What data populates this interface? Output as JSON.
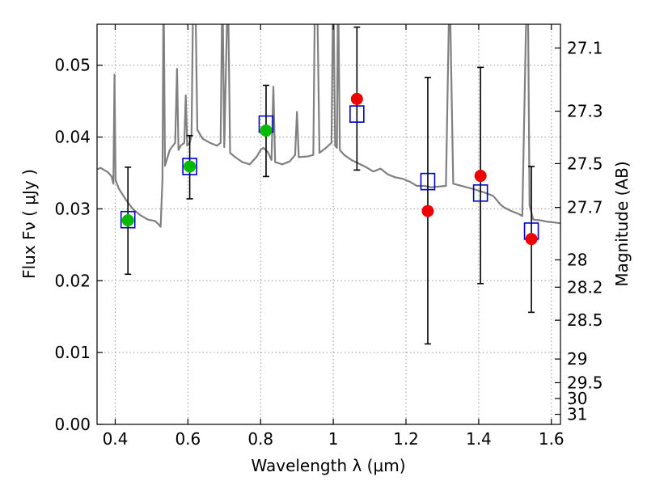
{
  "chart_data": {
    "type": "scatter",
    "title": "",
    "xlabel": "Wavelength  λ (μm)",
    "ylabel": "Flux  Fν  ( μJy )",
    "ylabel_right": "Magnitude (AB)",
    "xlim": [
      0.35,
      1.625
    ],
    "ylim": [
      0.0,
      0.0557
    ],
    "x_ticks": [
      0.4,
      0.6,
      0.8,
      1.0,
      1.2,
      1.4,
      1.6
    ],
    "x_tick_labels": [
      "0.4",
      "0.6",
      "0.8",
      "1",
      "1.2",
      "1.4",
      "1.6"
    ],
    "y_ticks": [
      0.0,
      0.01,
      0.02,
      0.03,
      0.04,
      0.05
    ],
    "y_tick_labels": [
      "0.00",
      "0.01",
      "0.02",
      "0.03",
      "0.04",
      "0.05"
    ],
    "right_ticks": [
      {
        "label": "27.1",
        "flux": 0.0524
      },
      {
        "label": "27.3",
        "flux": 0.0436
      },
      {
        "label": "27.5",
        "flux": 0.0363
      },
      {
        "label": "27.7",
        "flux": 0.0302
      },
      {
        "label": "28",
        "flux": 0.0229
      },
      {
        "label": "28.2",
        "flux": 0.0191
      },
      {
        "label": "28.5",
        "flux": 0.0145
      },
      {
        "label": "29",
        "flux": 0.0091
      },
      {
        "label": "29.5",
        "flux": 0.0058
      },
      {
        "label": "30",
        "flux": 0.0036
      },
      {
        "label": "31",
        "flux": 0.0014
      }
    ],
    "grid": true,
    "series": [
      {
        "marker": "open-square",
        "color": "#0000cc",
        "x": [
          0.435,
          0.605,
          0.815,
          1.065,
          1.26,
          1.405,
          1.545
        ],
        "y": [
          0.0285,
          0.0359,
          0.0418,
          0.0432,
          0.0338,
          0.0322,
          0.0269
        ]
      },
      {
        "marker": "filled-circle",
        "color": "#00bb00",
        "x": [
          0.435,
          0.605,
          0.815
        ],
        "y": [
          0.0284,
          0.0359,
          0.0409
        ]
      },
      {
        "marker": "filled-circle",
        "color": "#ee0000",
        "x": [
          1.065,
          1.26,
          1.405,
          1.545
        ],
        "y": [
          0.0453,
          0.0297,
          0.0346,
          0.0258
        ]
      }
    ],
    "error_bars": [
      {
        "x": 0.435,
        "low": 0.0209,
        "high": 0.0358
      },
      {
        "x": 0.605,
        "low": 0.0314,
        "high": 0.0402
      },
      {
        "x": 0.815,
        "low": 0.0345,
        "high": 0.0472
      },
      {
        "x": 1.065,
        "low": 0.0354,
        "high": 0.0553
      },
      {
        "x": 1.26,
        "low": 0.0112,
        "high": 0.0483
      },
      {
        "x": 1.405,
        "low": 0.0196,
        "high": 0.0497
      },
      {
        "x": 1.545,
        "low": 0.0156,
        "high": 0.0359
      }
    ],
    "model_spectrum": {
      "color": "#808080",
      "points": [
        [
          0.35,
          0.0355
        ],
        [
          0.36,
          0.0357
        ],
        [
          0.37,
          0.0354
        ],
        [
          0.38,
          0.0351
        ],
        [
          0.39,
          0.0345
        ],
        [
          0.395,
          0.0335
        ],
        [
          0.398,
          0.0487
        ],
        [
          0.401,
          0.034
        ],
        [
          0.41,
          0.0328
        ],
        [
          0.43,
          0.0312
        ],
        [
          0.45,
          0.0299
        ],
        [
          0.47,
          0.0291
        ],
        [
          0.49,
          0.0285
        ],
        [
          0.51,
          0.0283
        ],
        [
          0.52,
          0.0278
        ],
        [
          0.525,
          0.0275
        ],
        [
          0.53,
          0.0342
        ],
        [
          0.533,
          0.062
        ],
        [
          0.537,
          0.036
        ],
        [
          0.55,
          0.0382
        ],
        [
          0.565,
          0.0392
        ],
        [
          0.57,
          0.0495
        ],
        [
          0.574,
          0.0382
        ],
        [
          0.58,
          0.0388
        ],
        [
          0.59,
          0.0392
        ],
        [
          0.594,
          0.0458
        ],
        [
          0.598,
          0.0388
        ],
        [
          0.605,
          0.0392
        ],
        [
          0.61,
          0.0402
        ],
        [
          0.615,
          0.062
        ],
        [
          0.62,
          0.062
        ],
        [
          0.626,
          0.041
        ],
        [
          0.64,
          0.0398
        ],
        [
          0.66,
          0.0392
        ],
        [
          0.68,
          0.0388
        ],
        [
          0.69,
          0.0392
        ],
        [
          0.695,
          0.062
        ],
        [
          0.7,
          0.0386
        ],
        [
          0.71,
          0.062
        ],
        [
          0.716,
          0.0378
        ],
        [
          0.73,
          0.0372
        ],
        [
          0.75,
          0.0365
        ],
        [
          0.77,
          0.0362
        ],
        [
          0.79,
          0.0373
        ],
        [
          0.8,
          0.0382
        ],
        [
          0.808,
          0.0385
        ],
        [
          0.82,
          0.0379
        ],
        [
          0.83,
          0.0368
        ],
        [
          0.835,
          0.047
        ],
        [
          0.84,
          0.0365
        ],
        [
          0.86,
          0.0362
        ],
        [
          0.88,
          0.0366
        ],
        [
          0.895,
          0.0375
        ],
        [
          0.9,
          0.0435
        ],
        [
          0.905,
          0.0372
        ],
        [
          0.93,
          0.0373
        ],
        [
          0.945,
          0.0375
        ],
        [
          0.95,
          0.062
        ],
        [
          0.955,
          0.062
        ],
        [
          0.962,
          0.0378
        ],
        [
          0.98,
          0.0385
        ],
        [
          0.995,
          0.0392
        ],
        [
          1.0,
          0.062
        ],
        [
          1.005,
          0.0388
        ],
        [
          1.01,
          0.0385
        ],
        [
          1.013,
          0.062
        ],
        [
          1.018,
          0.0382
        ],
        [
          1.03,
          0.0375
        ],
        [
          1.05,
          0.0368
        ],
        [
          1.07,
          0.0363
        ],
        [
          1.09,
          0.0358
        ],
        [
          1.11,
          0.0352
        ],
        [
          1.13,
          0.0356
        ],
        [
          1.15,
          0.0348
        ],
        [
          1.17,
          0.0344
        ],
        [
          1.19,
          0.0342
        ],
        [
          1.21,
          0.0338
        ],
        [
          1.23,
          0.0332
        ],
        [
          1.25,
          0.0332
        ],
        [
          1.27,
          0.033
        ],
        [
          1.29,
          0.0331
        ],
        [
          1.31,
          0.0332
        ],
        [
          1.32,
          0.062
        ],
        [
          1.33,
          0.0335
        ],
        [
          1.36,
          0.0331
        ],
        [
          1.39,
          0.0327
        ],
        [
          1.42,
          0.0322
        ],
        [
          1.44,
          0.0318
        ],
        [
          1.45,
          0.0312
        ],
        [
          1.46,
          0.0306
        ],
        [
          1.47,
          0.0302
        ],
        [
          1.49,
          0.0297
        ],
        [
          1.51,
          0.0293
        ],
        [
          1.52,
          0.029
        ],
        [
          1.53,
          0.055
        ],
        [
          1.535,
          0.062
        ],
        [
          1.54,
          0.0305
        ],
        [
          1.55,
          0.0285
        ],
        [
          1.57,
          0.0284
        ],
        [
          1.59,
          0.0282
        ],
        [
          1.61,
          0.0281
        ],
        [
          1.625,
          0.028
        ]
      ]
    }
  }
}
